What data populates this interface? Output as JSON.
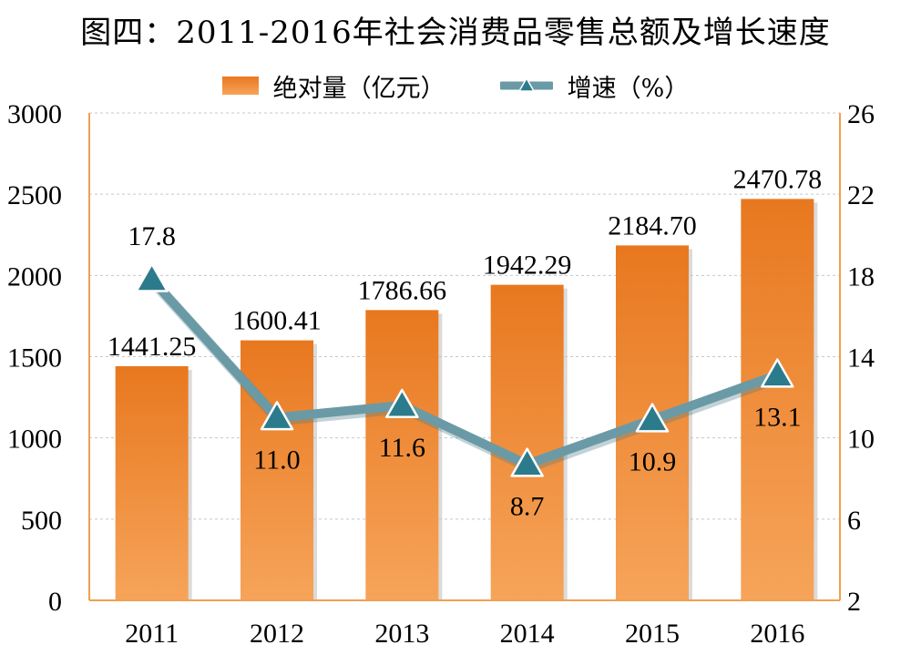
{
  "chart_data": {
    "type": "bar",
    "title": "图四：2011-2016年社会消费品零售总额及增长速度",
    "categories": [
      "2011",
      "2012",
      "2013",
      "2014",
      "2015",
      "2016"
    ],
    "series": [
      {
        "name": "绝对量（亿元）",
        "type": "bar",
        "axis": "left",
        "values": [
          1441.25,
          1600.41,
          1786.66,
          1942.29,
          2184.7,
          2470.78
        ],
        "labels": [
          "1441.25",
          "1600.41",
          "1786.66",
          "1942.29",
          "2184.70",
          "2470.78"
        ]
      },
      {
        "name": "增速（%）",
        "type": "line",
        "axis": "right",
        "values": [
          17.8,
          11.0,
          11.6,
          8.7,
          10.9,
          13.1
        ],
        "labels": [
          "17.8",
          "11.0",
          "11.6",
          "8.7",
          "10.9",
          "13.1"
        ]
      }
    ],
    "y_left": {
      "min": 0,
      "max": 3000,
      "ticks": [
        "0",
        "500",
        "1000",
        "1500",
        "2000",
        "2500",
        "3000"
      ]
    },
    "y_right": {
      "min": 2,
      "max": 26,
      "ticks": [
        "2",
        "6",
        "10",
        "14",
        "18",
        "22",
        "26"
      ]
    },
    "grid": true,
    "legend_position": "top-center",
    "colors": {
      "bar_top": "#e8781f",
      "bar_bottom": "#f6a45a",
      "line": "#6a9aa6",
      "marker": "#2c7b8c",
      "axis": "#f0a050",
      "grid": "#c8c8c8"
    }
  }
}
